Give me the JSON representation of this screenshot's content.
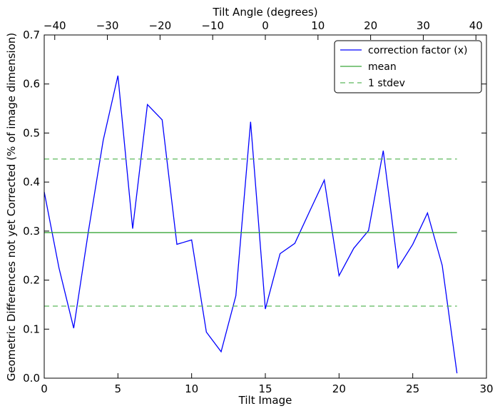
{
  "chart_data": {
    "type": "line",
    "title": "",
    "xlabel": "Tilt Image",
    "ylabel": "Geometric Differences not yet Corrected (% of image dimension)",
    "top_xlabel": "Tilt Angle (degrees)",
    "xlim": [
      0,
      30
    ],
    "ylim": [
      0,
      0.7
    ],
    "top_xlim": [
      -42,
      42
    ],
    "xticks": [
      0,
      5,
      10,
      15,
      20,
      25,
      30
    ],
    "yticks": [
      0.0,
      0.1,
      0.2,
      0.3,
      0.4,
      0.5,
      0.6,
      0.7
    ],
    "top_xticks": [
      -40,
      -30,
      -20,
      -10,
      0,
      10,
      20,
      30,
      40
    ],
    "xtick_labels": [
      "0",
      "5",
      "10",
      "15",
      "20",
      "25",
      "30"
    ],
    "ytick_labels": [
      "0.0",
      "0.1",
      "0.2",
      "0.3",
      "0.4",
      "0.5",
      "0.6",
      "0.7"
    ],
    "top_xtick_labels": [
      "−40",
      "−30",
      "−20",
      "−10",
      "0",
      "10",
      "20",
      "30",
      "40"
    ],
    "grid": false,
    "legend_position": "top-right",
    "series": [
      {
        "name": "correction factor (x)",
        "color": "#0000ff",
        "style": "solid",
        "x": [
          0,
          1,
          2,
          3,
          4,
          5,
          6,
          7,
          8,
          9,
          10,
          11,
          12,
          13,
          14,
          15,
          16,
          17,
          18,
          19,
          20,
          21,
          22,
          23,
          24,
          25,
          26,
          27,
          28
        ],
        "values": [
          0.38,
          0.225,
          0.102,
          0.3,
          0.485,
          0.617,
          0.305,
          0.558,
          0.527,
          0.273,
          0.282,
          0.094,
          0.054,
          0.168,
          0.523,
          0.141,
          0.254,
          0.275,
          0.34,
          0.404,
          0.209,
          0.265,
          0.301,
          0.464,
          0.225,
          0.273,
          0.337,
          0.23,
          0.01
        ]
      },
      {
        "name": "mean",
        "color": "#3aa63a",
        "style": "solid",
        "x": [
          0,
          28
        ],
        "values": [
          0.297,
          0.297
        ]
      },
      {
        "name": "1 stdev",
        "color": "#5cb85c",
        "style": "dashed",
        "x": [
          0,
          28
        ],
        "values": [
          0.447,
          0.447
        ]
      },
      {
        "name": "",
        "color": "#5cb85c",
        "style": "dashed",
        "x": [
          0,
          28
        ],
        "values": [
          0.147,
          0.147
        ]
      }
    ]
  }
}
